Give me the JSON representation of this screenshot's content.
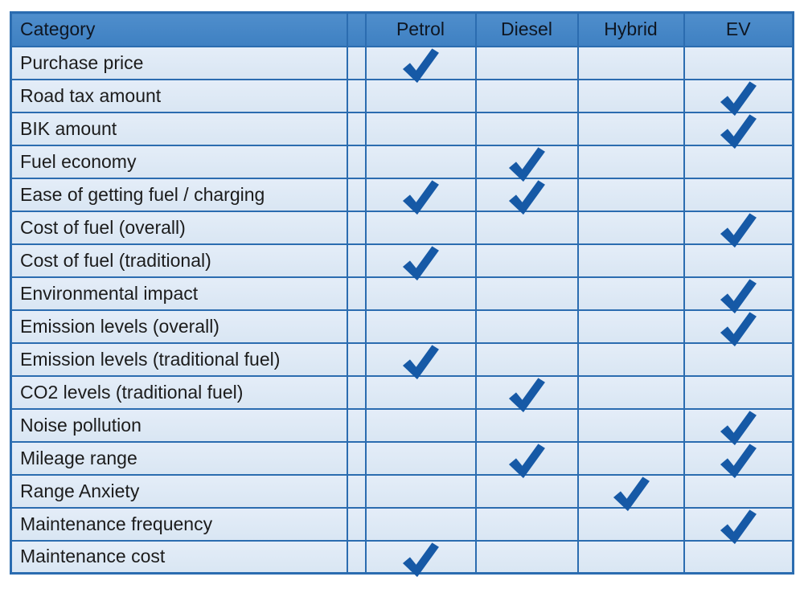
{
  "ui": {
    "colors": {
      "page_bg": "#ffffff",
      "header_bg": "#4587c7",
      "header_text": "#0e1622",
      "row_bg": "#dde9f5",
      "grid_border": "#2b6cb0",
      "check_mark": "#1659a6",
      "body_text": "#1c1c1c"
    },
    "check_icon": "heavy-check-mark"
  },
  "chart_data": {
    "type": "table",
    "title": "",
    "legend_position": "none",
    "grid": true,
    "columns": [
      {
        "key": "category",
        "label": "Category"
      },
      {
        "key": "spacer",
        "label": ""
      },
      {
        "key": "petrol",
        "label": "Petrol"
      },
      {
        "key": "diesel",
        "label": "Diesel"
      },
      {
        "key": "hybrid",
        "label": "Hybrid"
      },
      {
        "key": "ev",
        "label": "EV"
      }
    ],
    "rows": [
      {
        "category": "Purchase price",
        "checks": [
          "petrol"
        ]
      },
      {
        "category": "Road tax amount",
        "checks": [
          "ev"
        ]
      },
      {
        "category": "BIK amount",
        "checks": [
          "ev"
        ]
      },
      {
        "category": "Fuel economy",
        "checks": [
          "diesel"
        ]
      },
      {
        "category": "Ease of getting fuel / charging",
        "checks": [
          "petrol",
          "diesel"
        ]
      },
      {
        "category": "Cost of fuel (overall)",
        "checks": [
          "ev"
        ]
      },
      {
        "category": "Cost of fuel (traditional)",
        "checks": [
          "petrol"
        ]
      },
      {
        "category": "Environmental impact",
        "checks": [
          "ev"
        ]
      },
      {
        "category": "Emission levels (overall)",
        "checks": [
          "ev"
        ]
      },
      {
        "category": "Emission levels (traditional fuel)",
        "checks": [
          "petrol"
        ]
      },
      {
        "category": "CO2 levels (traditional fuel)",
        "checks": [
          "diesel"
        ]
      },
      {
        "category": "Noise pollution",
        "checks": [
          "ev"
        ]
      },
      {
        "category": "Mileage range",
        "checks": [
          "diesel",
          "ev"
        ]
      },
      {
        "category": "Range Anxiety",
        "checks": [
          "hybrid"
        ]
      },
      {
        "category": "Maintenance frequency",
        "checks": [
          "ev"
        ]
      },
      {
        "category": "Maintenance cost",
        "checks": [
          "petrol"
        ]
      }
    ]
  }
}
